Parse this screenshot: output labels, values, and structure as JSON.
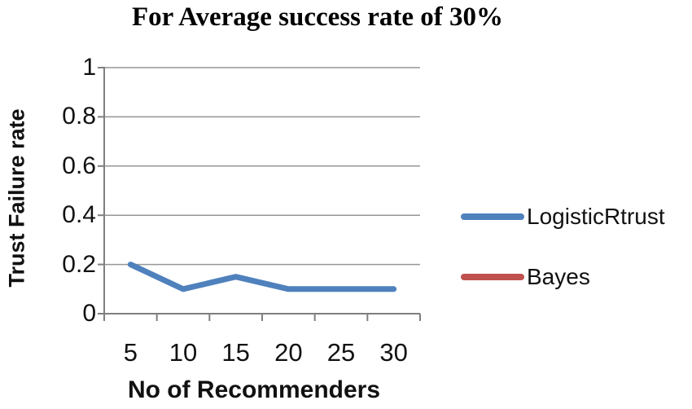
{
  "chart_data": {
    "type": "line",
    "title": "For Average success rate of 30%",
    "xlabel": "No of Recommenders",
    "ylabel": "Trust Failure rate",
    "categories": [
      "5",
      "10",
      "15",
      "20",
      "25",
      "30"
    ],
    "series": [
      {
        "name": "LogisticRtrust",
        "color": "#4F81BD",
        "values": [
          0.2,
          0.1,
          0.15,
          0.1,
          0.1,
          0.1
        ]
      },
      {
        "name": "Bayes",
        "color": "#C0504D",
        "values": [],
        "note": "legend entry only; no line visible inside the plot area"
      }
    ],
    "ylim": [
      0,
      1
    ],
    "yticks": [
      0,
      0.2,
      0.4,
      0.6,
      0.8,
      1
    ],
    "ytick_labels": [
      "0",
      "0.2",
      "0.4",
      "0.6",
      "0.8",
      "1"
    ],
    "grid": true,
    "legend_position": "right-middle",
    "colors": {
      "axis": "#7f7f7f",
      "gridline": "#969696",
      "text": "#111111"
    }
  }
}
